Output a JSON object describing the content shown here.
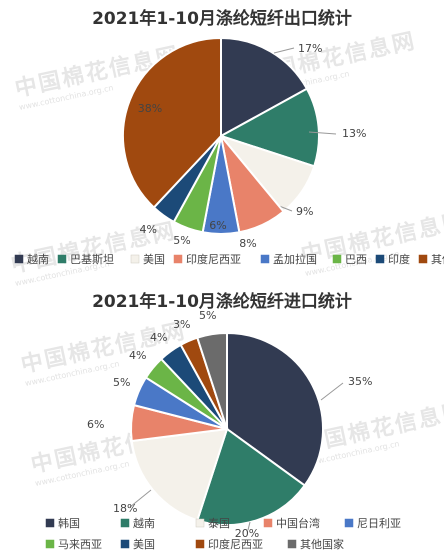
{
  "watermark": {
    "text": "中国棉花信息网",
    "url": "www.cottonchina.org.cn"
  },
  "chart_data": [
    {
      "type": "pie",
      "title": "2021年1-10月涤纶短纤出口统计",
      "slices": [
        {
          "label": "越南",
          "value": 17,
          "value_label": "17%",
          "color": "#323b52"
        },
        {
          "label": "巴基斯坦",
          "value": 13,
          "value_label": "13%",
          "color": "#2f7d69"
        },
        {
          "label": "美国",
          "value": 9,
          "value_label": "9%",
          "color": "#f4f1ea"
        },
        {
          "label": "印度尼西亚",
          "value": 8,
          "value_label": "8%",
          "color": "#e8836a"
        },
        {
          "label": "孟加拉国",
          "value": 6,
          "value_label": "6%",
          "color": "#4a78c7"
        },
        {
          "label": "巴西",
          "value": 5,
          "value_label": "5%",
          "color": "#6bb547"
        },
        {
          "label": "印度",
          "value": 4,
          "value_label": "4%",
          "color": "#1c4a78"
        },
        {
          "label": "其他国家",
          "value": 38,
          "value_label": "38%",
          "color": "#a0490f"
        }
      ],
      "legend_position": "bottom"
    },
    {
      "type": "pie",
      "title": "2021年1-10月涤纶短纤进口统计",
      "slices": [
        {
          "label": "韩国",
          "value": 35,
          "value_label": "35%",
          "color": "#323b52"
        },
        {
          "label": "越南",
          "value": 20,
          "value_label": "20%",
          "color": "#2f7d69"
        },
        {
          "label": "泰国",
          "value": 18,
          "value_label": "18%",
          "color": "#f4f1ea"
        },
        {
          "label": "中国台湾",
          "value": 6,
          "value_label": "6%",
          "color": "#e8836a"
        },
        {
          "label": "尼日利亚",
          "value": 5,
          "value_label": "5%",
          "color": "#4a78c7"
        },
        {
          "label": "马来西亚",
          "value": 4,
          "value_label": "4%",
          "color": "#6bb547"
        },
        {
          "label": "美国",
          "value": 4,
          "value_label": "4%",
          "color": "#1c4a78"
        },
        {
          "label": "印度尼西亚",
          "value": 3,
          "value_label": "3%",
          "color": "#a0490f"
        },
        {
          "label": "其他国家",
          "value": 5,
          "value_label": "5%",
          "color": "#6b6b6b"
        }
      ],
      "legend_position": "bottom"
    }
  ]
}
